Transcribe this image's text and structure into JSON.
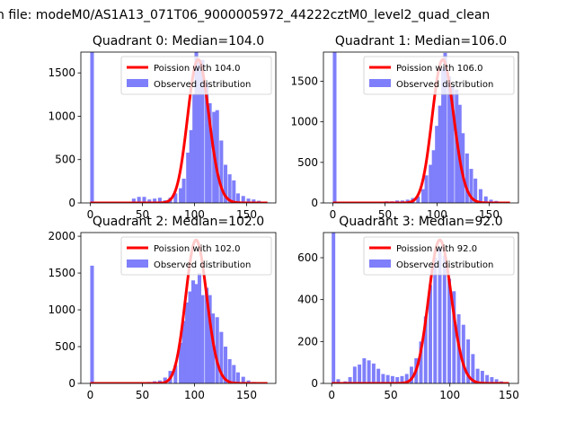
{
  "figure": {
    "suptitle": "n file: modeM0/AS1A13_071T06_9000005972_44222cztM0_level2_quad_clean"
  },
  "colors": {
    "hist": "#7f7ffb",
    "poisson": "#ff0000"
  },
  "chart_data": [
    {
      "type": "bar",
      "title": "Quadrant 0: Median=104.0",
      "xlim": [
        -9,
        178
      ],
      "ylim": [
        0,
        1740
      ],
      "xticks": [
        0,
        50,
        100,
        150
      ],
      "yticks": [
        0,
        500,
        1000,
        1500
      ],
      "legend": [
        "Poission with 104.0",
        "Observed distribution"
      ],
      "legend_position": "upper right",
      "bin_width": 3.5,
      "histogram": {
        "x": [
          0,
          10,
          20,
          30,
          40,
          45,
          50,
          55,
          60,
          65,
          70,
          75,
          80,
          85,
          88,
          92,
          95,
          98,
          100,
          103,
          106,
          110,
          113,
          117,
          120,
          124,
          128,
          132,
          136,
          140,
          145,
          150,
          155,
          160,
          165,
          170
        ],
        "values": [
          1740,
          0,
          0,
          0,
          50,
          70,
          70,
          40,
          50,
          60,
          30,
          60,
          110,
          170,
          280,
          580,
          840,
          1250,
          1740,
          1620,
          1650,
          1390,
          1150,
          1050,
          1070,
          720,
          440,
          330,
          260,
          110,
          80,
          50,
          40,
          25,
          10,
          5
        ]
      },
      "poisson": {
        "mean": 104.0
      }
    },
    {
      "type": "bar",
      "title": "Quadrant 1: Median=106.0",
      "xlim": [
        -9,
        178
      ],
      "ylim": [
        0,
        1860
      ],
      "xticks": [
        0,
        50,
        100,
        150
      ],
      "yticks": [
        0,
        500,
        1000,
        1500
      ],
      "legend": [
        "Poission with 106.0",
        "Observed distribution"
      ],
      "legend_position": "upper right",
      "bin_width": 3.5,
      "histogram": {
        "x": [
          0,
          40,
          50,
          55,
          60,
          65,
          70,
          75,
          80,
          85,
          88,
          92,
          95,
          98,
          101,
          104,
          106,
          110,
          113,
          117,
          120,
          123,
          127,
          131,
          135,
          140,
          145,
          150,
          155,
          160
        ],
        "values": [
          1860,
          10,
          20,
          20,
          30,
          30,
          40,
          60,
          80,
          170,
          340,
          470,
          650,
          950,
          1200,
          1650,
          1850,
          1560,
          1430,
          1400,
          1210,
          860,
          610,
          420,
          300,
          170,
          80,
          40,
          25,
          10
        ]
      },
      "poisson": {
        "mean": 106.0
      }
    },
    {
      "type": "bar",
      "title": "Quadrant 2: Median=102.0",
      "xlim": [
        -9,
        178
      ],
      "ylim": [
        0,
        2050
      ],
      "xticks": [
        0,
        50,
        100,
        150
      ],
      "yticks": [
        0,
        500,
        1000,
        1500,
        2000
      ],
      "legend": [
        "Poission with 102.0",
        "Observed distribution"
      ],
      "legend_position": "upper right",
      "bin_width": 3.5,
      "histogram": {
        "x": [
          0,
          50,
          55,
          60,
          65,
          70,
          75,
          80,
          85,
          88,
          91,
          94,
          97,
          100,
          103,
          106,
          110,
          113,
          116,
          120,
          124,
          128,
          132,
          136,
          140,
          145,
          150,
          155,
          160
        ],
        "values": [
          1600,
          10,
          20,
          30,
          40,
          80,
          170,
          250,
          550,
          850,
          1100,
          1250,
          1400,
          1350,
          1500,
          1200,
          1300,
          1200,
          950,
          900,
          700,
          500,
          330,
          250,
          150,
          90,
          40,
          20,
          10
        ]
      },
      "poisson": {
        "mean": 102.0
      }
    },
    {
      "type": "bar",
      "title": "Quadrant 3: Median=92.0",
      "xlim": [
        -7,
        158
      ],
      "ylim": [
        0,
        720
      ],
      "xticks": [
        0,
        50,
        100,
        150
      ],
      "yticks": [
        0,
        200,
        400,
        600
      ],
      "legend": [
        "Poission with 92.0",
        "Observed distribution"
      ],
      "legend_position": "upper right",
      "bin_width": 3,
      "histogram": {
        "x": [
          0,
          4,
          10,
          14,
          18,
          22,
          26,
          30,
          34,
          38,
          42,
          46,
          50,
          54,
          58,
          62,
          66,
          70,
          74,
          78,
          82,
          86,
          90,
          94,
          98,
          102,
          106,
          110,
          114,
          118,
          122,
          126,
          130,
          134,
          138,
          142,
          146
        ],
        "values": [
          720,
          20,
          10,
          30,
          80,
          90,
          120,
          110,
          95,
          70,
          45,
          40,
          35,
          30,
          35,
          45,
          80,
          120,
          200,
          320,
          470,
          600,
          650,
          610,
          500,
          440,
          330,
          280,
          210,
          140,
          70,
          60,
          40,
          30,
          20,
          10,
          5
        ]
      },
      "poisson": {
        "mean": 92.0
      }
    }
  ]
}
